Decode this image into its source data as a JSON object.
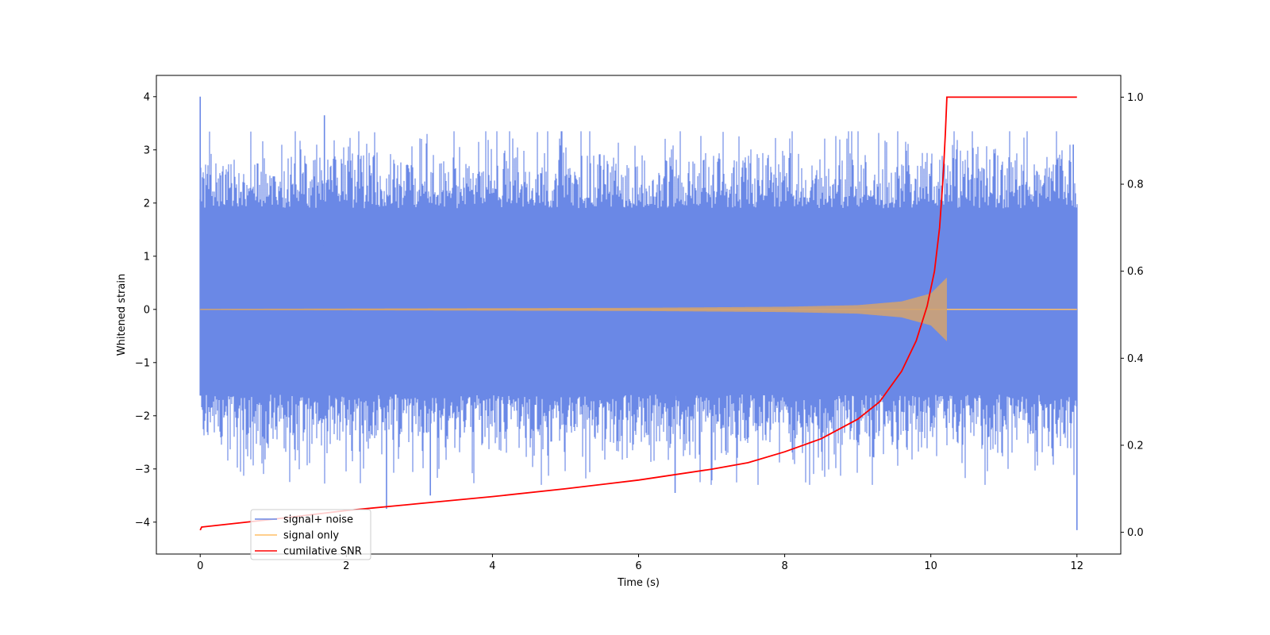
{
  "chart_data": {
    "type": "line",
    "title": "",
    "xlabel": "Time (s)",
    "ylabel": "Whitened strain",
    "ylabel_right": "",
    "xlim": [
      -0.6,
      12.6
    ],
    "ylim": [
      -4.6,
      4.4
    ],
    "ylim_right": [
      -0.05,
      1.05
    ],
    "x_ticks": [
      0,
      2,
      4,
      6,
      8,
      10,
      12
    ],
    "x_tick_labels": [
      "0",
      "2",
      "4",
      "6",
      "8",
      "10",
      "12"
    ],
    "y_ticks": [
      -4,
      -3,
      -2,
      -1,
      0,
      1,
      2,
      3,
      4
    ],
    "y_tick_labels": [
      "−4",
      "−3",
      "−2",
      "−1",
      "0",
      "1",
      "2",
      "3",
      "4"
    ],
    "y_ticks_right": [
      0.0,
      0.2,
      0.4,
      0.6,
      0.8,
      1.0
    ],
    "y_tick_labels_right": [
      "0.0",
      "0.2",
      "0.4",
      "0.6",
      "0.8",
      "1.0"
    ],
    "grid": false,
    "legend_placement": "lower-left",
    "series": [
      {
        "name": "signal+ noise",
        "axis": "left",
        "color": "#6a88e6",
        "style": "dense-noise",
        "x_range": [
          0,
          12
        ],
        "band_typical": [
          -1.6,
          1.9
        ],
        "extremes": [
          {
            "x": 0.0,
            "y": 4.0
          },
          {
            "x": 1.7,
            "y": 3.65
          },
          {
            "x": 2.55,
            "y": -3.75
          },
          {
            "x": 3.15,
            "y": -3.5
          },
          {
            "x": 6.5,
            "y": -3.45
          },
          {
            "x": 11.95,
            "y": 3.1
          },
          {
            "x": 12.0,
            "y": -4.15
          }
        ]
      },
      {
        "name": "signal only",
        "axis": "left",
        "color": "#ffbf66",
        "style": "chirp",
        "x_range": [
          0,
          12
        ],
        "merger_time": 10.22,
        "peak_amplitude": 0.6,
        "samples": [
          {
            "x": 0.0,
            "amp": 0.01
          },
          {
            "x": 6.0,
            "amp": 0.03
          },
          {
            "x": 8.0,
            "amp": 0.05
          },
          {
            "x": 9.0,
            "amp": 0.08
          },
          {
            "x": 9.6,
            "amp": 0.15
          },
          {
            "x": 10.0,
            "amp": 0.3
          },
          {
            "x": 10.22,
            "amp": 0.6
          }
        ]
      },
      {
        "name": "cumilative SNR",
        "axis": "right",
        "color": "#ff0000",
        "style": "line",
        "points": [
          {
            "x": 0.0,
            "y": 0.005
          },
          {
            "x": 0.02,
            "y": 0.012
          },
          {
            "x": 1.0,
            "y": 0.03
          },
          {
            "x": 2.0,
            "y": 0.05
          },
          {
            "x": 3.0,
            "y": 0.066
          },
          {
            "x": 4.0,
            "y": 0.082
          },
          {
            "x": 5.0,
            "y": 0.1
          },
          {
            "x": 6.0,
            "y": 0.12
          },
          {
            "x": 7.0,
            "y": 0.145
          },
          {
            "x": 7.5,
            "y": 0.16
          },
          {
            "x": 8.0,
            "y": 0.185
          },
          {
            "x": 8.5,
            "y": 0.215
          },
          {
            "x": 9.0,
            "y": 0.26
          },
          {
            "x": 9.3,
            "y": 0.3
          },
          {
            "x": 9.6,
            "y": 0.37
          },
          {
            "x": 9.8,
            "y": 0.44
          },
          {
            "x": 9.95,
            "y": 0.52
          },
          {
            "x": 10.05,
            "y": 0.6
          },
          {
            "x": 10.12,
            "y": 0.7
          },
          {
            "x": 10.17,
            "y": 0.82
          },
          {
            "x": 10.2,
            "y": 0.92
          },
          {
            "x": 10.22,
            "y": 1.0
          },
          {
            "x": 12.0,
            "y": 1.0
          }
        ]
      }
    ]
  }
}
